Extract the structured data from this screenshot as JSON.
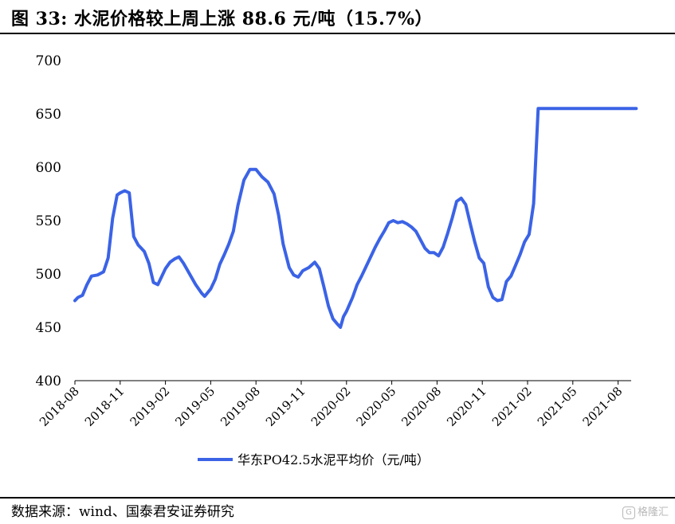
{
  "figure": {
    "title": "图  33:  水泥价格较上周上涨 88.6 元/吨（15.7%）",
    "source": "数据来源：wind、国泰君安证券研究",
    "watermark": "格隆汇",
    "watermark_icon": "G"
  },
  "colors": {
    "series": "#3b63e6",
    "axis": "#000000"
  },
  "chart_data": {
    "type": "line",
    "title": "",
    "xlabel": "",
    "ylabel": "",
    "ylim": [
      400,
      700
    ],
    "yticks": [
      400,
      450,
      500,
      550,
      600,
      650,
      700
    ],
    "xticks": [
      "2018-08",
      "2018-11",
      "2019-02",
      "2019-05",
      "2019-08",
      "2019-11",
      "2020-02",
      "2020-05",
      "2020-08",
      "2020-11",
      "2021-02",
      "2021-05",
      "2021-08"
    ],
    "grid": false,
    "legend_position": "bottom-center",
    "series": [
      {
        "name": "华东PO42.5水泥平均价（元/吨）",
        "x_month": [
          0,
          0.2,
          0.5,
          0.8,
          1.1,
          1.5,
          1.9,
          2.2,
          2.5,
          2.8,
          3.0,
          3.3,
          3.6,
          3.9,
          4.2,
          4.4,
          4.6,
          4.9,
          5.2,
          5.5,
          6.0,
          6.3,
          6.6,
          6.9,
          7.2,
          7.6,
          8.0,
          8.4,
          8.6,
          9.0,
          9.3,
          9.6,
          9.9,
          10.2,
          10.5,
          10.8,
          11.2,
          11.6,
          12.0,
          12.4,
          12.8,
          13.2,
          13.5,
          13.8,
          14.2,
          14.5,
          14.8,
          15.1,
          15.5,
          15.9,
          16.2,
          16.5,
          16.8,
          17.1,
          17.4,
          17.6,
          17.8,
          18.0,
          18.4,
          18.7,
          19.0,
          19.3,
          19.6,
          19.9,
          20.2,
          20.5,
          20.8,
          21.1,
          21.4,
          21.7,
          22.0,
          22.3,
          22.6,
          22.9,
          23.2,
          23.5,
          23.8,
          24.1,
          24.4,
          24.7,
          25.0,
          25.3,
          25.6,
          25.9,
          26.2,
          26.5,
          26.8,
          27.1,
          27.4,
          27.7,
          28.0,
          28.3,
          28.6,
          28.9,
          29.2,
          29.5,
          29.8,
          30.1,
          30.4,
          30.7,
          31.0,
          31.3,
          31.6,
          31.9,
          32.2,
          32.5,
          32.8,
          33.1,
          33.4,
          33.7,
          34.0,
          34.3,
          34.6,
          34.9,
          35.2,
          35.5,
          35.8,
          36.1,
          36.4,
          36.7,
          37.0,
          37.2
        ],
        "values": [
          475,
          478,
          480,
          490,
          498,
          499,
          502,
          515,
          552,
          574,
          576,
          578,
          576,
          535,
          527,
          524,
          521,
          510,
          492,
          490,
          505,
          511,
          514,
          516,
          510,
          500,
          490,
          482,
          479,
          486,
          495,
          509,
          518,
          528,
          540,
          564,
          588,
          598,
          598,
          591,
          586,
          575,
          555,
          528,
          506,
          499,
          497,
          503,
          506,
          511,
          505,
          488,
          470,
          458,
          453,
          450,
          460,
          465,
          478,
          490,
          498,
          507,
          516,
          525,
          533,
          540,
          548,
          550,
          548,
          549,
          547,
          544,
          540,
          532,
          524,
          520,
          520,
          517,
          525,
          538,
          552,
          568,
          571,
          565,
          547,
          530,
          515,
          510,
          488,
          478,
          475,
          476,
          493,
          498,
          508,
          518,
          530,
          537,
          566,
          655,
          655,
          655,
          655,
          655,
          655,
          655,
          655,
          655,
          655,
          655,
          655,
          655,
          655,
          655,
          655,
          655,
          655,
          655,
          655,
          655,
          655,
          655
        ]
      }
    ]
  }
}
